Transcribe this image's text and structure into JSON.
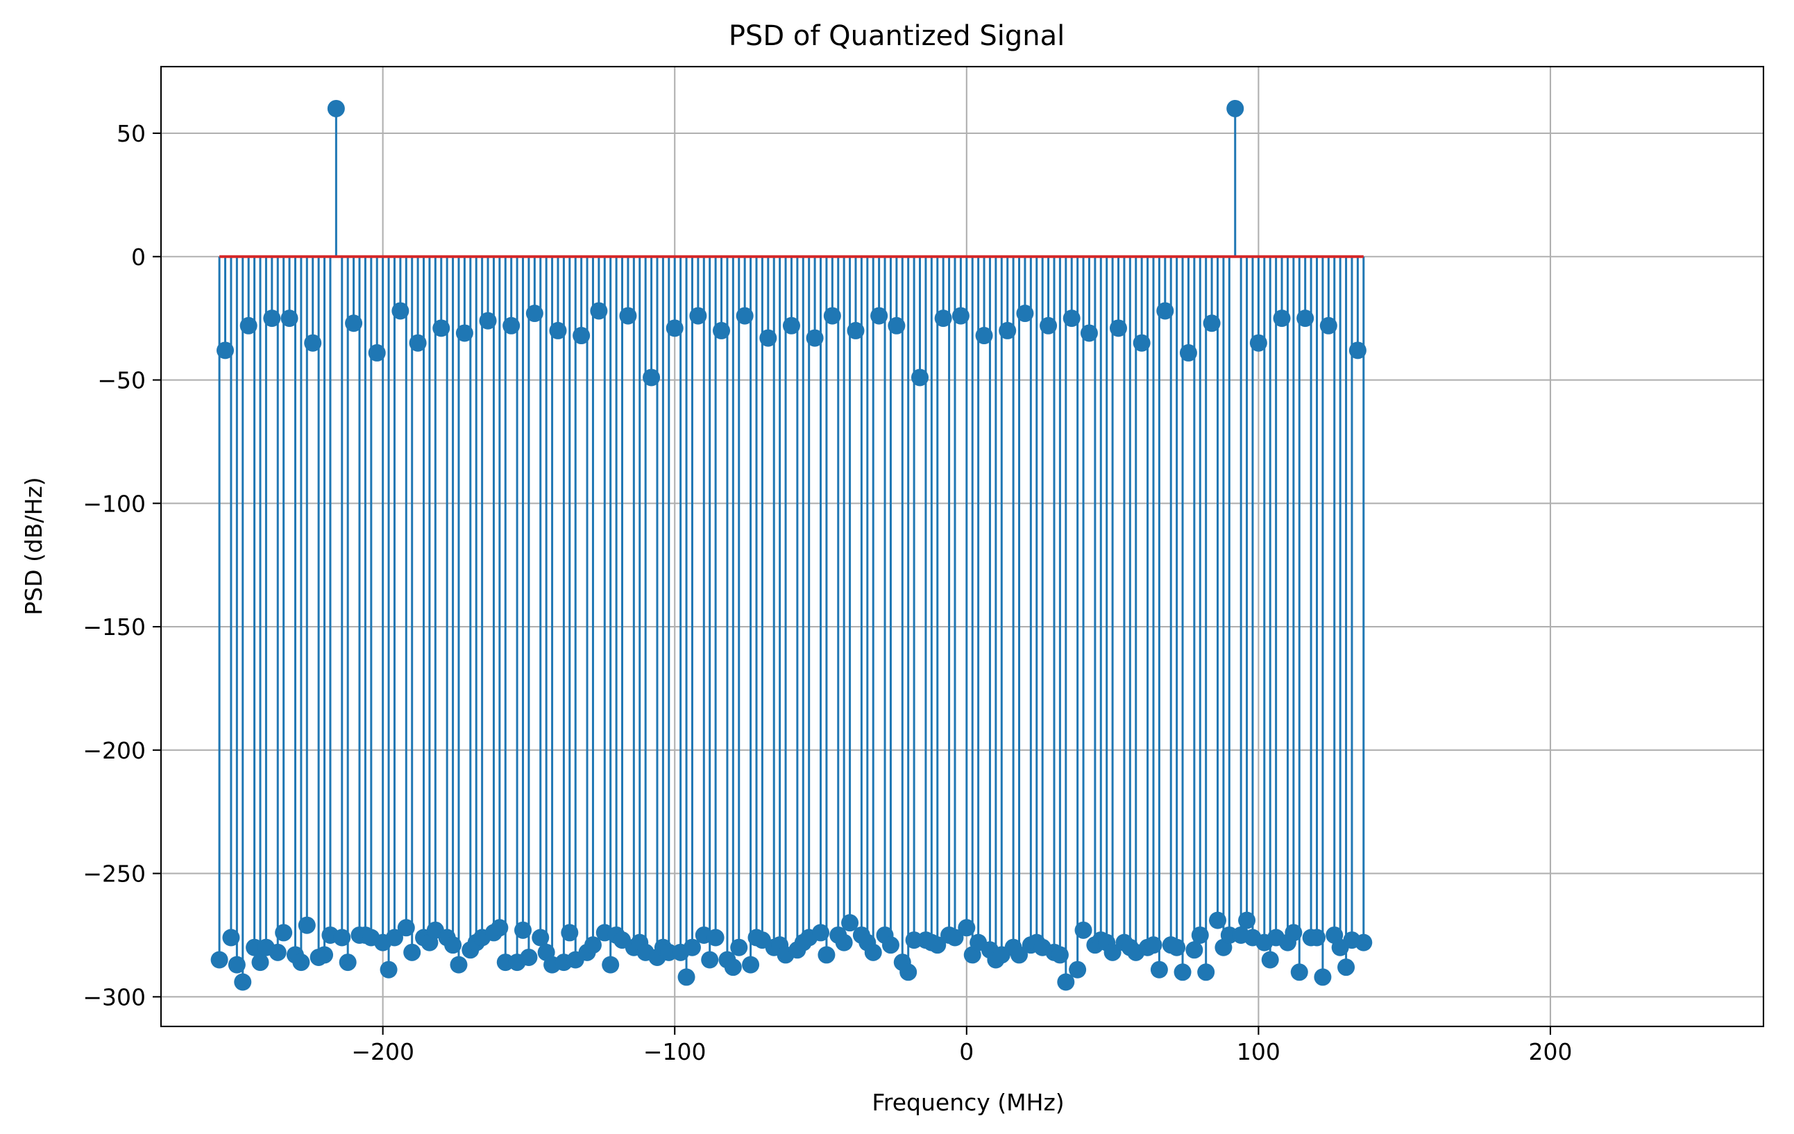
{
  "chart_data": {
    "type": "stem",
    "title": "PSD of Quantized Signal",
    "xlabel": "Frequency (MHz)",
    "ylabel": "PSD (dB/Hz)",
    "xlim": [
      -276,
      273
    ],
    "ylim": [
      -312,
      77
    ],
    "xticks": [
      -200,
      -100,
      0,
      100,
      200
    ],
    "xtick_labels": [
      "−200",
      "−100",
      "0",
      "100",
      "200"
    ],
    "yticks": [
      50,
      0,
      -50,
      -100,
      -150,
      -200,
      -250,
      -300
    ],
    "ytick_labels": [
      "50",
      "0",
      "−50",
      "−100",
      "−150",
      "−200",
      "−250",
      "−300"
    ],
    "grid": true,
    "baseline": 0,
    "colors": {
      "stem": "#1f77b4",
      "baseline": "#d62728"
    },
    "x_start": -256,
    "x_step": 2,
    "values": [
      -285,
      -38,
      -276,
      -287,
      -294,
      -28,
      -280,
      -286,
      -280,
      -25,
      -282,
      -274,
      -25,
      -283,
      -286,
      -271,
      -35,
      -284,
      -283,
      -275,
      60,
      -276,
      -286,
      -27,
      -275,
      -275,
      -276,
      -39,
      -278,
      -289,
      -276,
      -22,
      -272,
      -282,
      -35,
      -276,
      -278,
      -273,
      -29,
      -276,
      -279,
      -287,
      -31,
      -281,
      -278,
      -276,
      -26,
      -274,
      -272,
      -286,
      -28,
      -286,
      -273,
      -284,
      -23,
      -276,
      -282,
      -287,
      -30,
      -286,
      -274,
      -285,
      -32,
      -282,
      -279,
      -22,
      -274,
      -287,
      -275,
      -277,
      -24,
      -280,
      -278,
      -282,
      -49,
      -284,
      -280,
      -282,
      -29,
      -282,
      -292,
      -280,
      -24,
      -275,
      -285,
      -276,
      -30,
      -285,
      -288,
      -280,
      -24,
      -287,
      -276,
      -277,
      -33,
      -280,
      -279,
      -283,
      -28,
      -281,
      -278,
      -276,
      -33,
      -274,
      -283,
      -24,
      -275,
      -278,
      -270,
      -30,
      -275,
      -278,
      -282,
      -24,
      -275,
      -279,
      -28,
      -286,
      -290,
      -277,
      -49,
      -277,
      -278,
      -279,
      -25,
      -275,
      -276,
      -24,
      -272,
      -283,
      -278,
      -32,
      -281,
      -285,
      -283,
      -30,
      -280,
      -283,
      -23,
      -279,
      -278,
      -280,
      -28,
      -282,
      -283,
      -294,
      -25,
      -289,
      -273,
      -31,
      -279,
      -277,
      -278,
      -282,
      -29,
      -278,
      -280,
      -282,
      -35,
      -280,
      -279,
      -289,
      -22,
      -279,
      -280,
      -290,
      -39,
      -281,
      -275,
      -290,
      -27,
      -269,
      -280,
      -275,
      60,
      -275,
      -269,
      -276,
      -35,
      -278,
      -285,
      -276,
      -25,
      -278,
      -274,
      -290,
      -25,
      -276,
      -276,
      -292,
      -28,
      -275,
      -280,
      -288,
      -277,
      -38,
      -278
    ]
  }
}
